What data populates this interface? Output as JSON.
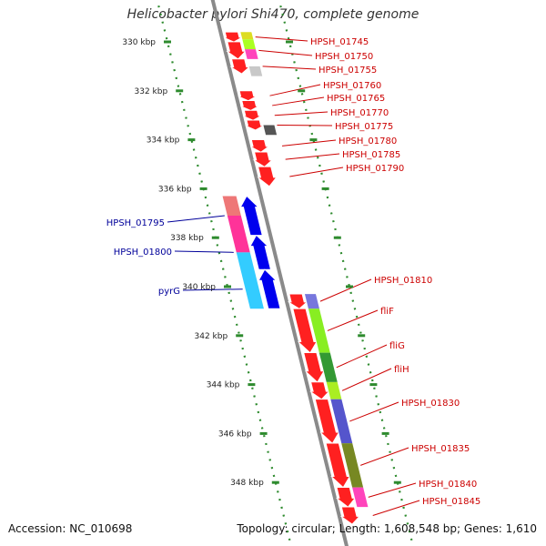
{
  "title": "Helicobacter pylori Shi470, complete genome",
  "footer": {
    "accession": "Accession: NC_010698",
    "summary": "Topology: circular; Length: 1,608,548 bp; Genes: 1,610"
  },
  "colors": {
    "backbone": "#8a8a8a",
    "scale_dots": "#2e8b2e",
    "forward_label": "#cc0000",
    "reverse_label": "#00009a"
  },
  "scale": {
    "unit": "kbp",
    "ticks": [
      {
        "kbp": 330,
        "label": "330 kbp"
      },
      {
        "kbp": 332,
        "label": "332 kbp"
      },
      {
        "kbp": 334,
        "label": "334 kbp"
      },
      {
        "kbp": 336,
        "label": "336 kbp"
      },
      {
        "kbp": 338,
        "label": "338 kbp"
      },
      {
        "kbp": 340,
        "label": "340 kbp"
      },
      {
        "kbp": 342,
        "label": "342 kbp"
      },
      {
        "kbp": 344,
        "label": "344 kbp"
      },
      {
        "kbp": 346,
        "label": "346 kbp"
      },
      {
        "kbp": 348,
        "label": "348 kbp"
      }
    ]
  },
  "forward_genes": [
    {
      "name": "HPSH_01745",
      "start": 329.6,
      "end": 330.0,
      "color": "#ff2020"
    },
    {
      "name": "HPSH_01750",
      "start": 330.0,
      "end": 330.7,
      "color": "#ff2020"
    },
    {
      "name": "HPSH_01755",
      "start": 330.7,
      "end": 331.3,
      "color": "#ff2020"
    },
    {
      "name": "HPSH_01760",
      "start": 332.0,
      "end": 332.4,
      "color": "#ff2020"
    },
    {
      "name": "HPSH_01765",
      "start": 332.4,
      "end": 332.8,
      "color": "#ff2020"
    },
    {
      "name": "HPSH_01770",
      "start": 332.8,
      "end": 333.2,
      "color": "#ff2020"
    },
    {
      "name": "HPSH_01775",
      "start": 333.2,
      "end": 333.6,
      "color": "#ff2020"
    },
    {
      "name": "HPSH_01780",
      "start": 334.0,
      "end": 334.5,
      "color": "#ff2020"
    },
    {
      "name": "HPSH_01785",
      "start": 334.5,
      "end": 335.1,
      "color": "#ff2020"
    },
    {
      "name": "HPSH_01790",
      "start": 335.1,
      "end": 335.9,
      "color": "#ff2020"
    },
    {
      "name": "HPSH_01810",
      "start": 340.3,
      "end": 340.9,
      "color": "#ff2020"
    },
    {
      "name": "fliF",
      "start": 340.9,
      "end": 342.7,
      "color": "#ff2020"
    },
    {
      "name": "fliG",
      "start": 342.7,
      "end": 343.9,
      "color": "#ff2020"
    },
    {
      "name": "fliH",
      "start": 343.9,
      "end": 344.6,
      "color": "#ff2020"
    },
    {
      "name": "HPSH_01830",
      "start": 344.6,
      "end": 346.4,
      "color": "#ff2020"
    },
    {
      "name": "HPSH_01835",
      "start": 346.4,
      "end": 348.2,
      "color": "#ff2020"
    },
    {
      "name": "HPSH_01840",
      "start": 348.2,
      "end": 349.0,
      "color": "#ff2020"
    },
    {
      "name": "HPSH_01845",
      "start": 349.0,
      "end": 349.7,
      "color": "#ff2020"
    }
  ],
  "forward_cog": [
    {
      "start": 329.6,
      "end": 329.9,
      "color": "#dddd22"
    },
    {
      "start": 329.9,
      "end": 330.3,
      "color": "#aaff22"
    },
    {
      "start": 330.3,
      "end": 330.7,
      "color": "#ff44bb"
    },
    {
      "start": 331.0,
      "end": 331.4,
      "color": "#c8c8c8"
    },
    {
      "start": 333.4,
      "end": 333.8,
      "color": "#555555"
    },
    {
      "start": 340.3,
      "end": 340.9,
      "color": "#7777dd"
    },
    {
      "start": 340.9,
      "end": 342.7,
      "color": "#88ee22"
    },
    {
      "start": 342.7,
      "end": 343.9,
      "color": "#339933"
    },
    {
      "start": 343.9,
      "end": 344.6,
      "color": "#aaee22"
    },
    {
      "start": 344.6,
      "end": 346.4,
      "color": "#5555cc"
    },
    {
      "start": 346.4,
      "end": 348.2,
      "color": "#778822"
    },
    {
      "start": 348.2,
      "end": 349.0,
      "color": "#ff44bb"
    }
  ],
  "reverse_genes": [
    {
      "name": "HPSH_01795",
      "start": 336.3,
      "end": 337.9,
      "color": "#0000ee"
    },
    {
      "name": "HPSH_01800",
      "start": 337.9,
      "end": 339.3,
      "color": "#0000ee"
    },
    {
      "name": "pyrG",
      "start": 339.3,
      "end": 340.9,
      "color": "#0000ee"
    }
  ],
  "reverse_cog": [
    {
      "start": 336.3,
      "end": 337.1,
      "color": "#ee7777"
    },
    {
      "start": 337.1,
      "end": 338.6,
      "color": "#ff3399"
    },
    {
      "start": 338.6,
      "end": 340.9,
      "color": "#33ccff"
    }
  ]
}
